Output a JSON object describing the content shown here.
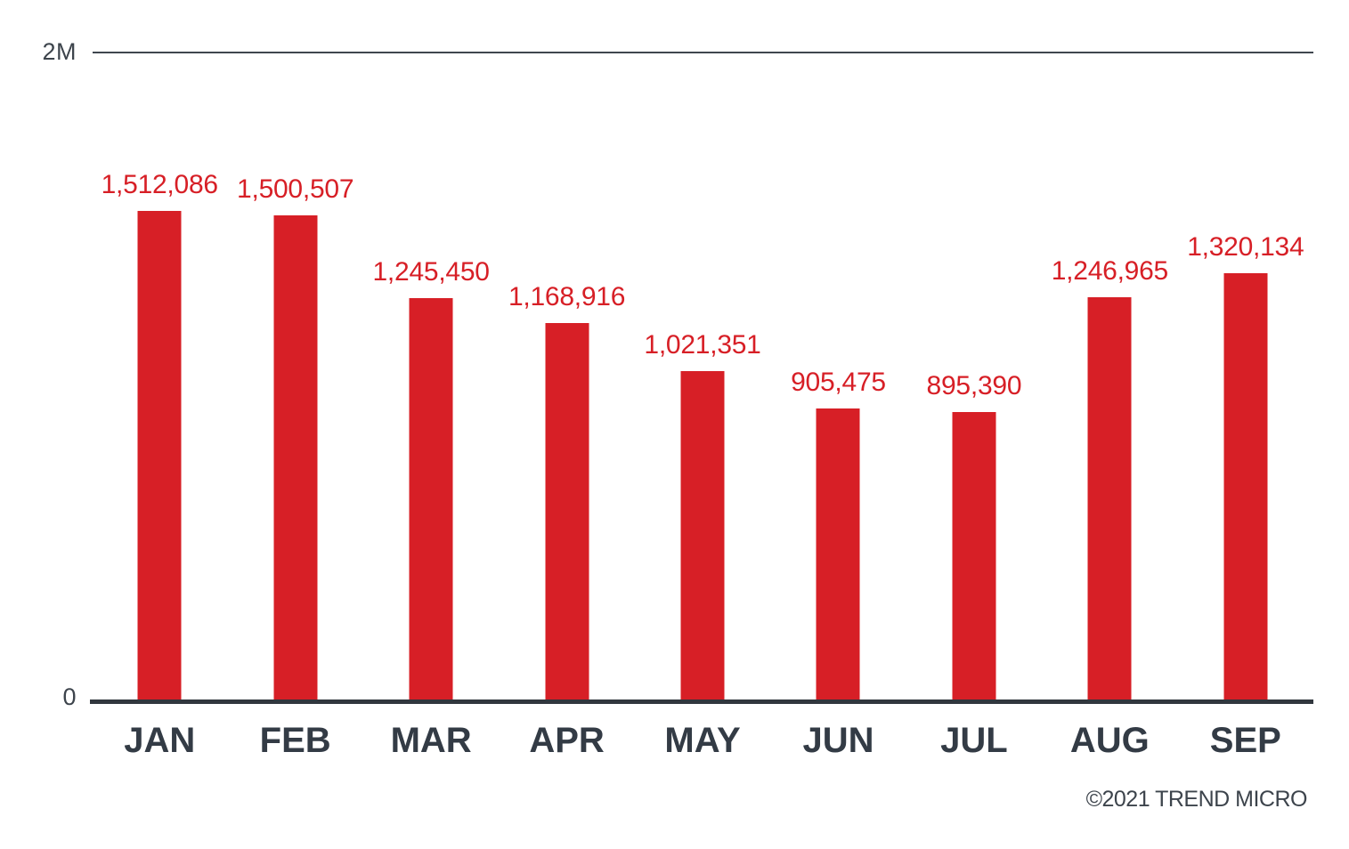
{
  "chart_data": {
    "type": "bar",
    "categories": [
      "JAN",
      "FEB",
      "MAR",
      "APR",
      "MAY",
      "JUN",
      "JUL",
      "AUG",
      "SEP"
    ],
    "values": [
      1512086,
      1500507,
      1245450,
      1168916,
      1021351,
      905475,
      895390,
      1246965,
      1320134
    ],
    "value_labels": [
      "1,512,086",
      "1,500,507",
      "1,245,450",
      "1,168,916",
      "1,021,351",
      "905,475",
      "895,390",
      "1,246,965",
      "1,320,134"
    ],
    "title": "",
    "xlabel": "",
    "ylabel": "",
    "ylim": [
      0,
      2000000
    ],
    "ytick_labels": [
      "2M",
      "0"
    ],
    "legend": "none",
    "grid": "single top gridline at 2M, solid baseline at 0",
    "colors": {
      "bar": "#d71f26",
      "value_label": "#d71f26",
      "month_label": "#333b45",
      "axis_text": "#3d444c",
      "top_gridline": "#3f464e",
      "baseline": "#31373e",
      "background": "#ffffff"
    }
  },
  "footer": {
    "copyright": "©2021 TREND MICRO"
  }
}
